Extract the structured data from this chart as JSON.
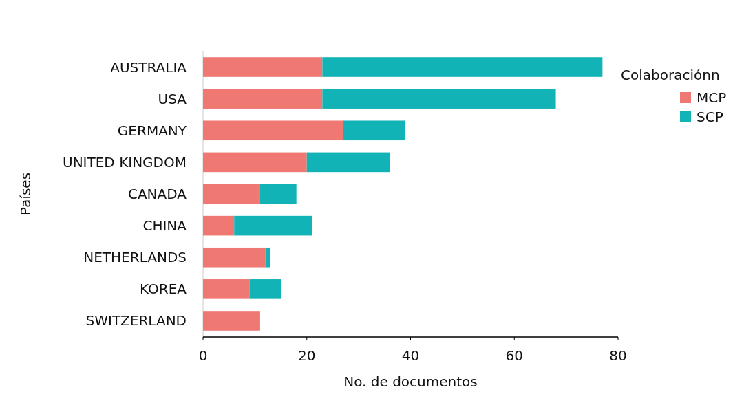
{
  "chart_data": {
    "type": "bar",
    "orientation": "horizontal",
    "stacked": true,
    "xlabel": "No. de documentos",
    "ylabel": "Países",
    "legend_title": "Colaboraciónn",
    "legend": "right",
    "categories": [
      "AUSTRALIA",
      "USA",
      "GERMANY",
      "UNITED KINGDOM",
      "CANADA",
      "CHINA",
      "NETHERLANDS",
      "KOREA",
      "SWITZERLAND"
    ],
    "series": [
      {
        "name": "MCP",
        "color": "#f07872",
        "values": [
          23,
          23,
          27,
          20,
          11,
          6,
          12,
          9,
          11
        ]
      },
      {
        "name": "SCP",
        "color": "#12b3b6",
        "values": [
          54,
          45,
          12,
          16,
          7,
          15,
          1,
          6,
          0
        ]
      }
    ],
    "xlim": [
      0,
      80
    ],
    "xticks": [
      0,
      20,
      40,
      60,
      80
    ]
  }
}
